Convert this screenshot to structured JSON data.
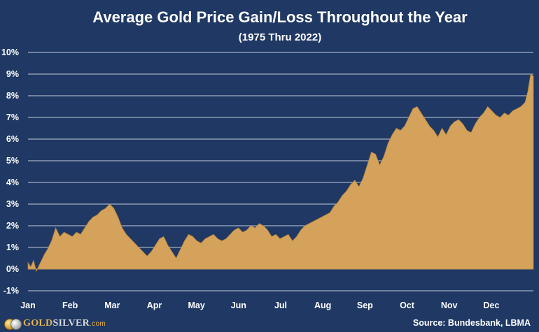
{
  "chart_data": {
    "type": "area",
    "title": "Average Gold Price Gain/Loss Throughout the Year",
    "subtitle": "(1975 Thru 2022)",
    "xlabel": "",
    "ylabel": "",
    "ylim": [
      -1,
      10
    ],
    "y_ticks": [
      "-1%",
      "0%",
      "1%",
      "2%",
      "3%",
      "4%",
      "5%",
      "6%",
      "7%",
      "8%",
      "9%",
      "10%"
    ],
    "x_ticks": [
      "Jan",
      "Feb",
      "Mar",
      "Apr",
      "May",
      "Jun",
      "Jul",
      "Aug",
      "Sep",
      "Oct",
      "Nov",
      "Dec"
    ],
    "x_range": [
      0,
      365
    ],
    "grid": true,
    "fill_color": "#d4a25a",
    "series": [
      {
        "x": [
          0,
          2,
          4,
          6,
          9,
          12,
          14,
          17,
          20,
          23,
          26,
          29,
          32,
          35,
          38,
          41,
          44,
          47,
          50,
          53,
          56,
          59,
          62,
          65,
          68,
          71,
          74,
          77,
          80,
          83,
          86,
          89,
          92,
          95,
          98,
          101,
          104,
          107,
          110,
          113,
          116,
          119,
          122,
          125,
          128,
          131,
          134,
          137,
          140,
          143,
          146,
          149,
          152,
          155,
          158,
          161,
          164,
          167,
          170,
          173,
          176,
          179,
          182,
          185,
          188,
          191,
          194,
          197,
          200,
          203,
          206,
          209,
          212,
          215,
          218,
          221,
          224,
          227,
          230,
          233,
          236,
          239,
          242,
          245,
          248,
          251,
          254,
          257,
          260,
          263,
          266,
          269,
          272,
          275,
          278,
          281,
          284,
          287,
          290,
          293,
          296,
          299,
          302,
          305,
          308,
          311,
          314,
          317,
          320,
          323,
          326,
          329,
          332,
          335,
          338,
          341,
          344,
          347,
          350,
          353,
          356,
          359,
          361,
          363,
          365
        ],
        "y": [
          0.3,
          0.1,
          0.4,
          -0.1,
          0.3,
          0.7,
          0.9,
          1.3,
          1.9,
          1.5,
          1.7,
          1.6,
          1.5,
          1.7,
          1.6,
          1.9,
          2.2,
          2.4,
          2.5,
          2.7,
          2.8,
          3.0,
          2.8,
          2.4,
          1.9,
          1.6,
          1.4,
          1.2,
          1.0,
          0.8,
          0.6,
          0.8,
          1.1,
          1.4,
          1.5,
          1.1,
          0.8,
          0.5,
          0.9,
          1.3,
          1.6,
          1.5,
          1.3,
          1.2,
          1.4,
          1.5,
          1.6,
          1.4,
          1.3,
          1.4,
          1.6,
          1.8,
          1.9,
          1.7,
          1.8,
          2.0,
          1.9,
          2.1,
          2.0,
          1.8,
          1.5,
          1.6,
          1.4,
          1.5,
          1.6,
          1.3,
          1.5,
          1.8,
          2.0,
          2.1,
          2.2,
          2.3,
          2.4,
          2.5,
          2.6,
          2.9,
          3.1,
          3.4,
          3.6,
          3.9,
          4.1,
          3.8,
          4.2,
          4.8,
          5.4,
          5.3,
          4.8,
          5.2,
          5.8,
          6.2,
          6.5,
          6.4,
          6.6,
          7.0,
          7.4,
          7.5,
          7.2,
          6.9,
          6.6,
          6.4,
          6.1,
          6.5,
          6.2,
          6.6,
          6.8,
          6.9,
          6.7,
          6.4,
          6.3,
          6.7,
          7.0,
          7.2,
          7.5,
          7.3,
          7.1,
          7.0,
          7.2,
          7.1,
          7.3,
          7.4,
          7.5,
          7.7,
          8.2,
          9.0,
          8.9
        ]
      }
    ]
  },
  "footer": {
    "brand_gold": "GOLD",
    "brand_silver": "SILVER",
    "brand_com": ".com",
    "source": "Source: Bundesbank, LBMA"
  }
}
